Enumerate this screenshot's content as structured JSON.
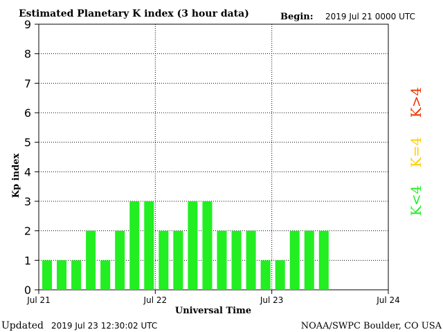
{
  "header": {
    "title": "Estimated Planetary K index (3 hour data)",
    "begin_label": "Begin:",
    "begin_value": "2019 Jul 21 0000 UTC"
  },
  "footer": {
    "updated_label": "Updated",
    "updated_value": "2019 Jul 23 12:30:02 UTC",
    "credit": "NOAA/SWPC Boulder, CO USA"
  },
  "legend": {
    "items": [
      {
        "label": "K<4",
        "color": "#22ee22"
      },
      {
        "label": "K=4",
        "color": "#ffcc00"
      },
      {
        "label": "K>4",
        "color": "#ee3300"
      }
    ]
  },
  "chart_data": {
    "type": "bar",
    "title": "Estimated Planetary K index (3 hour data)",
    "xlabel": "Universal Time",
    "ylabel": "Kp index",
    "ylim": [
      0,
      9
    ],
    "yticks": [
      "0",
      "1",
      "2",
      "3",
      "4",
      "5",
      "6",
      "7",
      "8",
      "9"
    ],
    "xlim": [
      0,
      72
    ],
    "xtick_hours": [
      0,
      24,
      48,
      72
    ],
    "xticks": [
      "Jul 21",
      "Jul 22",
      "Jul 23",
      "Jul 24"
    ],
    "bar_width_hours": 3,
    "grid": true,
    "bar_color": "#22ee22",
    "series": [
      {
        "x_hours": [
          0,
          3,
          6,
          9,
          12,
          15,
          18,
          21,
          24,
          27,
          30,
          33,
          36,
          39,
          42,
          45,
          48,
          51,
          54,
          57
        ],
        "values": [
          1,
          1,
          1,
          2,
          1,
          2,
          3,
          3,
          2,
          2,
          3,
          3,
          2,
          2,
          2,
          1,
          1,
          2,
          2,
          2
        ]
      }
    ]
  }
}
